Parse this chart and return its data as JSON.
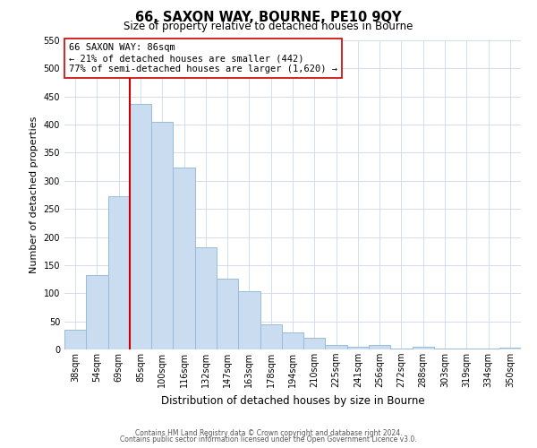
{
  "title": "66, SAXON WAY, BOURNE, PE10 9QY",
  "subtitle": "Size of property relative to detached houses in Bourne",
  "xlabel": "Distribution of detached houses by size in Bourne",
  "ylabel": "Number of detached properties",
  "bar_labels": [
    "38sqm",
    "54sqm",
    "69sqm",
    "85sqm",
    "100sqm",
    "116sqm",
    "132sqm",
    "147sqm",
    "163sqm",
    "178sqm",
    "194sqm",
    "210sqm",
    "225sqm",
    "241sqm",
    "256sqm",
    "272sqm",
    "288sqm",
    "303sqm",
    "319sqm",
    "334sqm",
    "350sqm"
  ],
  "bar_values": [
    35,
    133,
    272,
    437,
    405,
    323,
    181,
    126,
    103,
    45,
    30,
    20,
    8,
    5,
    8,
    1,
    4,
    1,
    1,
    1,
    3
  ],
  "bar_color": "#c9dcf0",
  "bar_edge_color": "#9abcd8",
  "vline_color": "#cc0000",
  "vline_index": 3,
  "annotation_title": "66 SAXON WAY: 86sqm",
  "annotation_line1": "← 21% of detached houses are smaller (442)",
  "annotation_line2": "77% of semi-detached houses are larger (1,620) →",
  "annotation_box_facecolor": "#ffffff",
  "annotation_box_edgecolor": "#cc0000",
  "ylim": [
    0,
    550
  ],
  "yticks": [
    0,
    50,
    100,
    150,
    200,
    250,
    300,
    350,
    400,
    450,
    500,
    550
  ],
  "footer1": "Contains HM Land Registry data © Crown copyright and database right 2024.",
  "footer2": "Contains public sector information licensed under the Open Government Licence v3.0.",
  "background_color": "#ffffff",
  "grid_color": "#ccd8ea",
  "title_fontsize": 10.5,
  "subtitle_fontsize": 8.5,
  "xlabel_fontsize": 8.5,
  "ylabel_fontsize": 8,
  "tick_fontsize": 7,
  "annotation_fontsize": 7.5,
  "footer_fontsize": 5.5
}
